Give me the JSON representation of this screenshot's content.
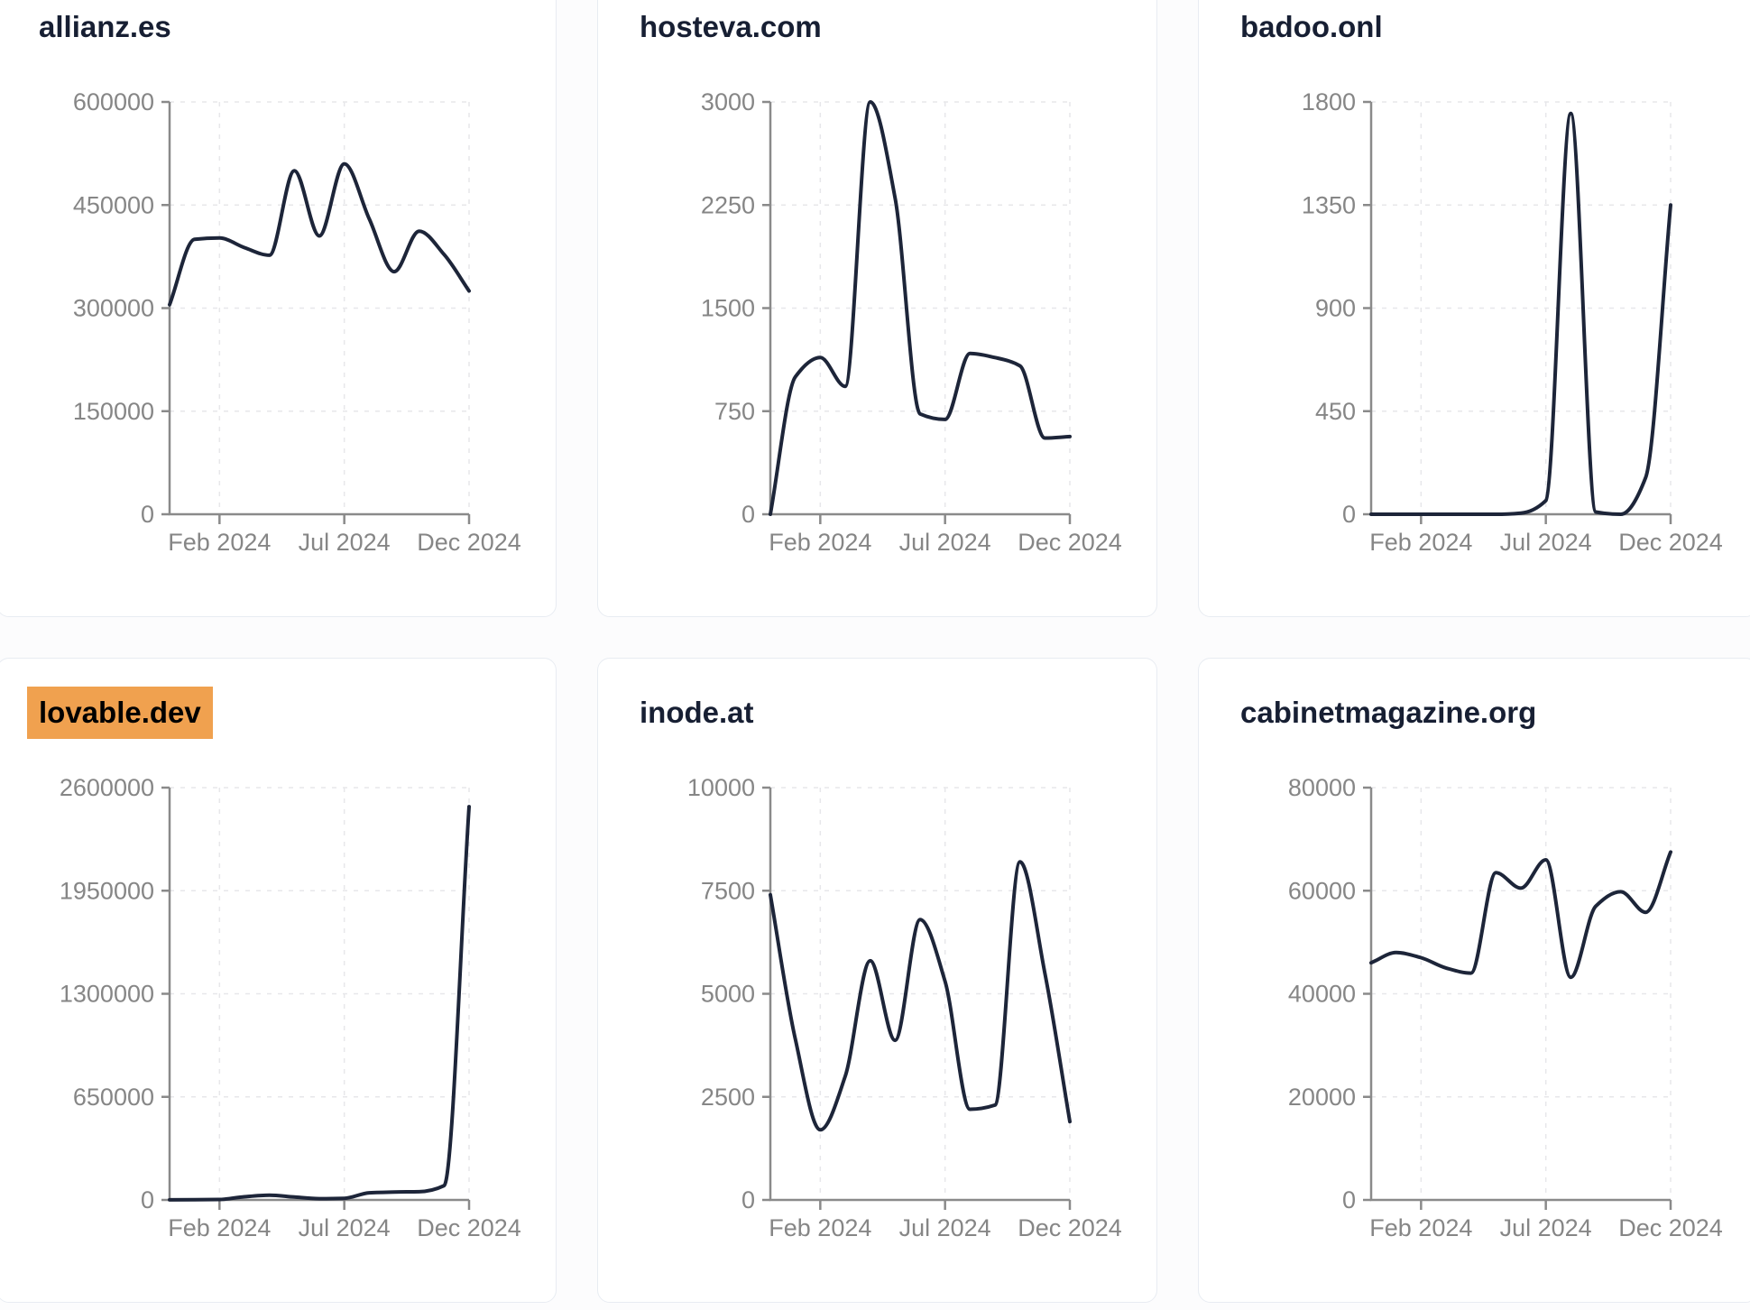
{
  "page": {
    "description": "Dashboard grid of six website traffic line charts for 2024",
    "x_axis_tick_labels": [
      "Feb 2024",
      "Jul 2024",
      "Dec 2024"
    ]
  },
  "style": {
    "page_bg": "#fcfcfd",
    "card_bg": "#ffffff",
    "card_border": "#e8ecf2",
    "title_color": "#171f33",
    "line_color": "#1d2539",
    "axis_color": "#8a8a8a",
    "tick_label_color": "#868686",
    "grid_color": "#e7e7ea",
    "highlight_bg": "#f0a14f",
    "highlight_text": "#000000"
  },
  "chart_data": [
    {
      "type": "line",
      "title": "allianz.es",
      "highlighted": false,
      "x": [
        "Dec 2023",
        "Jan 2024",
        "Feb 2024",
        "Mar 2024",
        "Apr 2024",
        "May 2024",
        "Jun 2024",
        "Jul 2024",
        "Aug 2024",
        "Sep 2024",
        "Oct 2024",
        "Nov 2024",
        "Dec 2024"
      ],
      "values": [
        305000,
        400000,
        402000,
        388000,
        377000,
        500000,
        405000,
        510000,
        430000,
        353000,
        412000,
        378000,
        325000
      ],
      "ylim": [
        0,
        600000
      ],
      "y_ticks": [
        0,
        150000,
        300000,
        450000,
        600000
      ],
      "x_ticks": [
        {
          "label": "Feb 2024",
          "index": 2
        },
        {
          "label": "Jul 2024",
          "index": 7
        },
        {
          "label": "Dec 2024",
          "index": 12
        }
      ],
      "xlabel": "",
      "ylabel": "",
      "grid": true,
      "legend": false
    },
    {
      "type": "line",
      "title": "hosteva.com",
      "highlighted": false,
      "x": [
        "Dec 2023",
        "Jan 2024",
        "Feb 2024",
        "Mar 2024",
        "Apr 2024",
        "May 2024",
        "Jun 2024",
        "Jul 2024",
        "Aug 2024",
        "Sep 2024",
        "Oct 2024",
        "Nov 2024",
        "Dec 2024"
      ],
      "values": [
        0,
        1000,
        1140,
        930,
        3000,
        2300,
        730,
        690,
        1170,
        1140,
        1080,
        555,
        565
      ],
      "ylim": [
        0,
        3000
      ],
      "y_ticks": [
        0,
        750,
        1500,
        2250,
        3000
      ],
      "x_ticks": [
        {
          "label": "Feb 2024",
          "index": 2
        },
        {
          "label": "Jul 2024",
          "index": 7
        },
        {
          "label": "Dec 2024",
          "index": 12
        }
      ],
      "xlabel": "",
      "ylabel": "",
      "grid": true,
      "legend": false
    },
    {
      "type": "line",
      "title": "badoo.onl",
      "highlighted": false,
      "x": [
        "Dec 2023",
        "Jan 2024",
        "Feb 2024",
        "Mar 2024",
        "Apr 2024",
        "May 2024",
        "Jun 2024",
        "Jul 2024",
        "Aug 2024",
        "Sep 2024",
        "Oct 2024",
        "Nov 2024",
        "Dec 2024"
      ],
      "values": [
        0,
        0,
        0,
        0,
        0,
        0,
        5,
        60,
        1750,
        10,
        0,
        160,
        1350
      ],
      "ylim": [
        0,
        1800
      ],
      "y_ticks": [
        0,
        450,
        900,
        1350,
        1800
      ],
      "x_ticks": [
        {
          "label": "Feb 2024",
          "index": 2
        },
        {
          "label": "Jul 2024",
          "index": 7
        },
        {
          "label": "Dec 2024",
          "index": 12
        }
      ],
      "xlabel": "",
      "ylabel": "",
      "grid": true,
      "legend": false
    },
    {
      "type": "line",
      "title": "lovable.dev",
      "highlighted": true,
      "x": [
        "Dec 2023",
        "Jan 2024",
        "Feb 2024",
        "Mar 2024",
        "Apr 2024",
        "May 2024",
        "Jun 2024",
        "Jul 2024",
        "Aug 2024",
        "Sep 2024",
        "Oct 2024",
        "Nov 2024",
        "Dec 2024"
      ],
      "values": [
        500,
        1500,
        3000,
        20000,
        30000,
        18000,
        8000,
        10000,
        45000,
        50000,
        52000,
        90000,
        2480000
      ],
      "ylim": [
        0,
        2600000
      ],
      "y_ticks": [
        0,
        650000,
        1300000,
        1950000,
        2600000
      ],
      "x_ticks": [
        {
          "label": "Feb 2024",
          "index": 2
        },
        {
          "label": "Jul 2024",
          "index": 7
        },
        {
          "label": "Dec 2024",
          "index": 12
        }
      ],
      "xlabel": "",
      "ylabel": "",
      "grid": true,
      "legend": false
    },
    {
      "type": "line",
      "title": "inode.at",
      "highlighted": false,
      "x": [
        "Dec 2023",
        "Jan 2024",
        "Feb 2024",
        "Mar 2024",
        "Apr 2024",
        "May 2024",
        "Jun 2024",
        "Jul 2024",
        "Aug 2024",
        "Sep 2024",
        "Oct 2024",
        "Nov 2024",
        "Dec 2024"
      ],
      "values": [
        7400,
        3900,
        1700,
        3000,
        5800,
        3870,
        6800,
        5300,
        2200,
        2300,
        8200,
        5500,
        1900
      ],
      "ylim": [
        0,
        10000
      ],
      "y_ticks": [
        0,
        2500,
        5000,
        7500,
        10000
      ],
      "x_ticks": [
        {
          "label": "Feb 2024",
          "index": 2
        },
        {
          "label": "Jul 2024",
          "index": 7
        },
        {
          "label": "Dec 2024",
          "index": 12
        }
      ],
      "xlabel": "",
      "ylabel": "",
      "grid": true,
      "legend": false
    },
    {
      "type": "line",
      "title": "cabinetmagazine.org",
      "highlighted": false,
      "x": [
        "Dec 2023",
        "Jan 2024",
        "Feb 2024",
        "Mar 2024",
        "Apr 2024",
        "May 2024",
        "Jun 2024",
        "Jul 2024",
        "Aug 2024",
        "Sep 2024",
        "Oct 2024",
        "Nov 2024",
        "Dec 2024"
      ],
      "values": [
        46000,
        48000,
        47000,
        45000,
        44000,
        63500,
        60500,
        66000,
        43200,
        57000,
        59800,
        55800,
        67500
      ],
      "ylim": [
        0,
        80000
      ],
      "y_ticks": [
        0,
        20000,
        40000,
        60000,
        80000
      ],
      "x_ticks": [
        {
          "label": "Feb 2024",
          "index": 2
        },
        {
          "label": "Jul 2024",
          "index": 7
        },
        {
          "label": "Dec 2024",
          "index": 12
        }
      ],
      "xlabel": "",
      "ylabel": "",
      "grid": true,
      "legend": false
    }
  ]
}
